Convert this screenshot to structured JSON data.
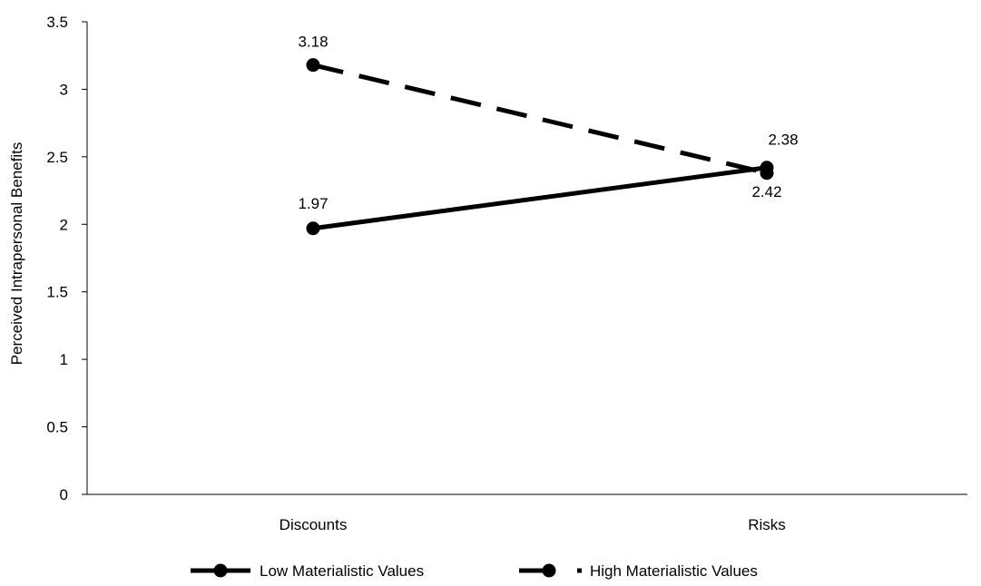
{
  "chart_data": {
    "type": "line",
    "title": "",
    "xlabel": "",
    "ylabel": "Perceived Intrapersonal Benefits",
    "categories": [
      "Discounts",
      "Risks"
    ],
    "ylim": [
      0,
      3.5
    ],
    "yticks": [
      0,
      0.5,
      1,
      1.5,
      2,
      2.5,
      3,
      3.5
    ],
    "ytick_labels": [
      "0",
      "0.5",
      "1",
      "1.5",
      "2",
      "2.5",
      "3",
      "3.5"
    ],
    "grid": false,
    "legend_position": "bottom",
    "series": [
      {
        "name": "Low Materialistic Values",
        "values": [
          1.97,
          2.42
        ],
        "labels": [
          "1.97",
          "2.42"
        ],
        "line_style": "solid",
        "color": "#000000"
      },
      {
        "name": "High Materialistic Values",
        "values": [
          3.18,
          2.38
        ],
        "labels": [
          "3.18",
          "2.38"
        ],
        "line_style": "dashed",
        "color": "#000000"
      }
    ]
  }
}
